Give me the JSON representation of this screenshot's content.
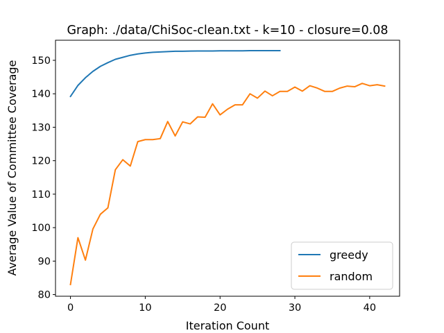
{
  "chart_data": {
    "type": "line",
    "title": "Graph: ./data/ChiSoc-clean.txt - k=10 - closure=0.08",
    "xlabel": "Iteration Count",
    "ylabel": "Average Value of Committee Coverage",
    "xlim": [
      -2,
      44
    ],
    "ylim": [
      79.5,
      156
    ],
    "xticks": [
      0,
      10,
      20,
      30,
      40
    ],
    "yticks": [
      80,
      90,
      100,
      110,
      120,
      130,
      140,
      150
    ],
    "grid": false,
    "legend_position": "lower-right",
    "series": [
      {
        "name": "greedy",
        "color": "#1f77b4",
        "x": [
          0,
          1,
          2,
          3,
          4,
          5,
          6,
          7,
          8,
          9,
          10,
          11,
          12,
          13,
          14,
          15,
          16,
          17,
          18,
          19,
          20,
          21,
          22,
          23,
          24,
          25,
          26,
          27,
          28
        ],
        "values": [
          139.2,
          142.5,
          144.8,
          146.7,
          148.2,
          149.3,
          150.3,
          150.9,
          151.5,
          151.9,
          152.2,
          152.4,
          152.5,
          152.6,
          152.7,
          152.7,
          152.75,
          152.8,
          152.8,
          152.8,
          152.85,
          152.85,
          152.85,
          152.85,
          152.9,
          152.9,
          152.9,
          152.9,
          152.9
        ]
      },
      {
        "name": "random",
        "color": "#ff7f0e",
        "x": [
          0,
          1,
          2,
          3,
          4,
          5,
          6,
          7,
          8,
          9,
          10,
          11,
          12,
          13,
          14,
          15,
          16,
          17,
          18,
          19,
          20,
          21,
          22,
          23,
          24,
          25,
          26,
          27,
          28,
          29,
          30,
          31,
          32,
          33,
          34,
          35,
          36,
          37,
          38,
          39,
          40,
          41,
          42
        ],
        "values": [
          83.0,
          97.0,
          90.3,
          99.6,
          104.0,
          105.9,
          117.3,
          120.3,
          118.4,
          125.7,
          126.3,
          126.3,
          126.6,
          131.7,
          127.4,
          131.6,
          131.0,
          133.1,
          133.0,
          137.0,
          133.7,
          135.4,
          136.7,
          136.7,
          140.0,
          138.7,
          140.8,
          139.4,
          140.7,
          140.7,
          142.0,
          140.8,
          142.4,
          141.7,
          140.7,
          140.7,
          141.7,
          142.3,
          142.1,
          143.1,
          142.4,
          142.7,
          142.3
        ]
      }
    ]
  }
}
